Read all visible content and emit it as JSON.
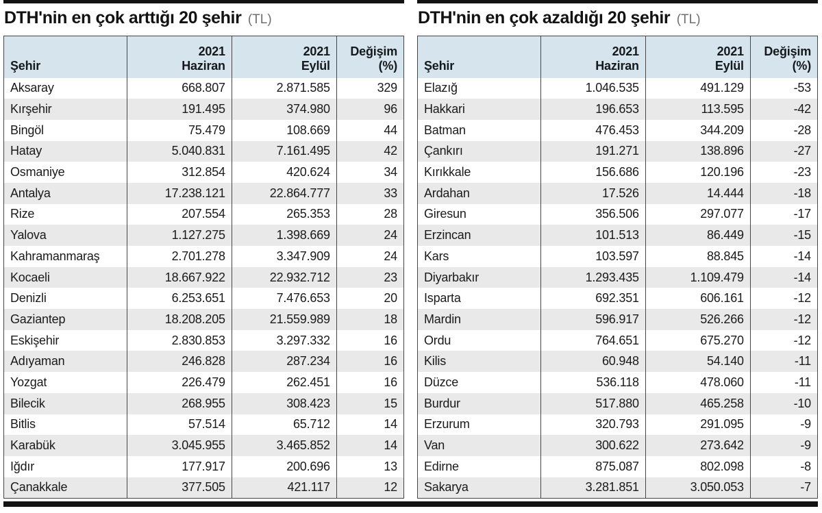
{
  "colors": {
    "header_bg": "#d6e4ee",
    "row_stripe": "#e9e9e9",
    "rule_black": "#121212",
    "table_border": "#444444",
    "title_suffix_gray": "#6f6f6f"
  },
  "tables": [
    {
      "title": "DTH'nin en çok arttığı 20 şehir",
      "title_suffix": "(TL)",
      "headers": {
        "city": "Şehir",
        "jun_line1": "2021",
        "jun_line2": "Haziran",
        "sep_line1": "2021",
        "sep_line2": "Eylül",
        "chg_line1": "Değişim",
        "chg_line2": "(%)"
      },
      "rows": [
        {
          "city": "Aksaray",
          "jun": "668.807",
          "sep": "2.871.585",
          "change": "329"
        },
        {
          "city": "Kırşehir",
          "jun": "191.495",
          "sep": "374.980",
          "change": "96"
        },
        {
          "city": "Bingöl",
          "jun": "75.479",
          "sep": "108.669",
          "change": "44"
        },
        {
          "city": "Hatay",
          "jun": "5.040.831",
          "sep": "7.161.495",
          "change": "42"
        },
        {
          "city": "Osmaniye",
          "jun": "312.854",
          "sep": "420.624",
          "change": "34"
        },
        {
          "city": "Antalya",
          "jun": "17.238.121",
          "sep": "22.864.777",
          "change": "33"
        },
        {
          "city": "Rize",
          "jun": "207.554",
          "sep": "265.353",
          "change": "28"
        },
        {
          "city": "Yalova",
          "jun": "1.127.275",
          "sep": "1.398.669",
          "change": "24"
        },
        {
          "city": "Kahramanmaraş",
          "jun": "2.701.278",
          "sep": "3.347.909",
          "change": "24"
        },
        {
          "city": "Kocaeli",
          "jun": "18.667.922",
          "sep": "22.932.712",
          "change": "23"
        },
        {
          "city": "Denizli",
          "jun": "6.253.651",
          "sep": "7.476.653",
          "change": "20"
        },
        {
          "city": "Gaziantep",
          "jun": "18.208.205",
          "sep": "21.559.989",
          "change": "18"
        },
        {
          "city": "Eskişehir",
          "jun": "2.830.853",
          "sep": "3.297.332",
          "change": "16"
        },
        {
          "city": "Adıyaman",
          "jun": "246.828",
          "sep": "287.234",
          "change": "16"
        },
        {
          "city": "Yozgat",
          "jun": "226.479",
          "sep": "262.451",
          "change": "16"
        },
        {
          "city": "Bilecik",
          "jun": "268.955",
          "sep": "308.423",
          "change": "15"
        },
        {
          "city": "Bitlis",
          "jun": "57.514",
          "sep": "65.712",
          "change": "14"
        },
        {
          "city": "Karabük",
          "jun": "3.045.955",
          "sep": "3.465.852",
          "change": "14"
        },
        {
          "city": "Iğdır",
          "jun": "177.917",
          "sep": "200.696",
          "change": "13"
        },
        {
          "city": "Çanakkale",
          "jun": "377.505",
          "sep": "421.117",
          "change": "12"
        }
      ]
    },
    {
      "title": "DTH'nin en çok azaldığı 20 şehir",
      "title_suffix": "(TL)",
      "headers": {
        "city": "Şehir",
        "jun_line1": "2021",
        "jun_line2": "Haziran",
        "sep_line1": "2021",
        "sep_line2": "Eylül",
        "chg_line1": "Değişim",
        "chg_line2": "(%)"
      },
      "rows": [
        {
          "city": "Elazığ",
          "jun": "1.046.535",
          "sep": "491.129",
          "change": "-53"
        },
        {
          "city": "Hakkari",
          "jun": "196.653",
          "sep": "113.595",
          "change": "-42"
        },
        {
          "city": "Batman",
          "jun": "476.453",
          "sep": "344.209",
          "change": "-28"
        },
        {
          "city": "Çankırı",
          "jun": "191.271",
          "sep": "138.896",
          "change": "-27"
        },
        {
          "city": "Kırıkkale",
          "jun": "156.686",
          "sep": "120.196",
          "change": "-23"
        },
        {
          "city": "Ardahan",
          "jun": "17.526",
          "sep": "14.444",
          "change": "-18"
        },
        {
          "city": "Giresun",
          "jun": "356.506",
          "sep": "297.077",
          "change": "-17"
        },
        {
          "city": "Erzincan",
          "jun": "101.513",
          "sep": "86.449",
          "change": "-15"
        },
        {
          "city": "Kars",
          "jun": "103.597",
          "sep": "88.845",
          "change": "-14"
        },
        {
          "city": "Diyarbakır",
          "jun": "1.293.435",
          "sep": "1.109.479",
          "change": "-14"
        },
        {
          "city": "Isparta",
          "jun": "692.351",
          "sep": "606.161",
          "change": "-12"
        },
        {
          "city": "Mardin",
          "jun": "596.917",
          "sep": "526.266",
          "change": "-12"
        },
        {
          "city": "Ordu",
          "jun": "764.651",
          "sep": "675.270",
          "change": "-12"
        },
        {
          "city": "Kilis",
          "jun": "60.948",
          "sep": "54.140",
          "change": "-11"
        },
        {
          "city": "Düzce",
          "jun": "536.118",
          "sep": "478.060",
          "change": "-11"
        },
        {
          "city": "Burdur",
          "jun": "517.880",
          "sep": "465.258",
          "change": "-10"
        },
        {
          "city": "Erzurum",
          "jun": "320.793",
          "sep": "291.095",
          "change": "-9"
        },
        {
          "city": "Van",
          "jun": "300.622",
          "sep": "273.642",
          "change": "-9"
        },
        {
          "city": "Edirne",
          "jun": "875.087",
          "sep": "802.098",
          "change": "-8"
        },
        {
          "city": "Sakarya",
          "jun": "3.281.851",
          "sep": "3.050.053",
          "change": "-7"
        }
      ]
    }
  ],
  "chart_data": [
    {
      "type": "table",
      "title": "DTH'nin en çok arttığı 20 şehir (TL)",
      "columns": [
        "Şehir",
        "2021 Haziran",
        "2021 Eylül",
        "Değişim (%)"
      ],
      "rows": [
        [
          "Aksaray",
          668807,
          2871585,
          329
        ],
        [
          "Kırşehir",
          191495,
          374980,
          96
        ],
        [
          "Bingöl",
          75479,
          108669,
          44
        ],
        [
          "Hatay",
          5040831,
          7161495,
          42
        ],
        [
          "Osmaniye",
          312854,
          420624,
          34
        ],
        [
          "Antalya",
          17238121,
          22864777,
          33
        ],
        [
          "Rize",
          207554,
          265353,
          28
        ],
        [
          "Yalova",
          1127275,
          1398669,
          24
        ],
        [
          "Kahramanmaraş",
          2701278,
          3347909,
          24
        ],
        [
          "Kocaeli",
          18667922,
          22932712,
          23
        ],
        [
          "Denizli",
          6253651,
          7476653,
          20
        ],
        [
          "Gaziantep",
          18208205,
          21559989,
          18
        ],
        [
          "Eskişehir",
          2830853,
          3297332,
          16
        ],
        [
          "Adıyaman",
          246828,
          287234,
          16
        ],
        [
          "Yozgat",
          226479,
          262451,
          16
        ],
        [
          "Bilecik",
          268955,
          308423,
          15
        ],
        [
          "Bitlis",
          57514,
          65712,
          14
        ],
        [
          "Karabük",
          3045955,
          3465852,
          14
        ],
        [
          "Iğdır",
          177917,
          200696,
          13
        ],
        [
          "Çanakkale",
          377505,
          421117,
          12
        ]
      ]
    },
    {
      "type": "table",
      "title": "DTH'nin en çok azaldığı 20 şehir (TL)",
      "columns": [
        "Şehir",
        "2021 Haziran",
        "2021 Eylül",
        "Değişim (%)"
      ],
      "rows": [
        [
          "Elazığ",
          1046535,
          491129,
          -53
        ],
        [
          "Hakkari",
          196653,
          113595,
          -42
        ],
        [
          "Batman",
          476453,
          344209,
          -28
        ],
        [
          "Çankırı",
          191271,
          138896,
          -27
        ],
        [
          "Kırıkkale",
          156686,
          120196,
          -23
        ],
        [
          "Ardahan",
          17526,
          14444,
          -18
        ],
        [
          "Giresun",
          356506,
          297077,
          -17
        ],
        [
          "Erzincan",
          101513,
          86449,
          -15
        ],
        [
          "Kars",
          103597,
          88845,
          -14
        ],
        [
          "Diyarbakır",
          1293435,
          1109479,
          -14
        ],
        [
          "Isparta",
          692351,
          606161,
          -12
        ],
        [
          "Mardin",
          596917,
          526266,
          -12
        ],
        [
          "Ordu",
          764651,
          675270,
          -12
        ],
        [
          "Kilis",
          60948,
          54140,
          -11
        ],
        [
          "Düzce",
          536118,
          478060,
          -11
        ],
        [
          "Burdur",
          517880,
          465258,
          -10
        ],
        [
          "Erzurum",
          320793,
          291095,
          -9
        ],
        [
          "Van",
          300622,
          273642,
          -9
        ],
        [
          "Edirne",
          875087,
          802098,
          -8
        ],
        [
          "Sakarya",
          3281851,
          3050053,
          -7
        ]
      ]
    }
  ]
}
